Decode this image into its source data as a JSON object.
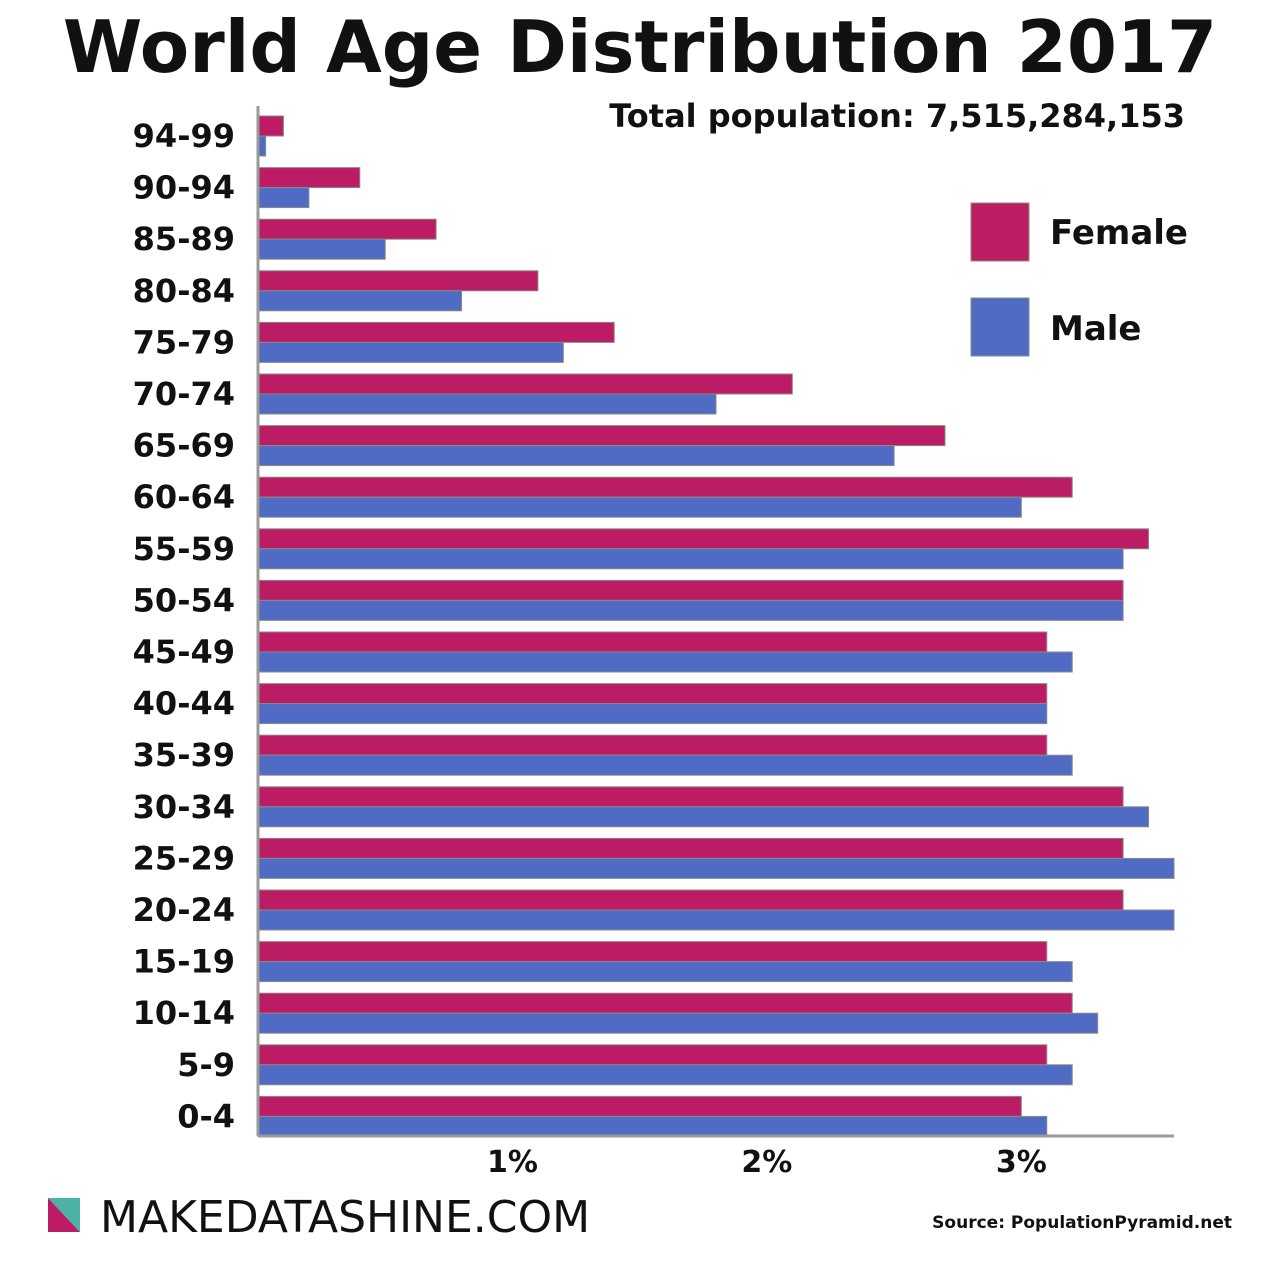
{
  "chart_data": {
    "type": "bar",
    "orientation": "horizontal",
    "title": "World Age Distribution 2017",
    "subtitle": "Total population: 7,515,284,153",
    "categories": [
      "94-99",
      "90-94",
      "85-89",
      "80-84",
      "75-79",
      "70-74",
      "65-69",
      "60-64",
      "55-59",
      "50-54",
      "45-49",
      "40-44",
      "35-39",
      "30-34",
      "25-29",
      "20-24",
      "15-19",
      "10-14",
      "5-9",
      "0-4"
    ],
    "series": [
      {
        "name": "Female",
        "color": "#bc1c63",
        "values": [
          0.1,
          0.4,
          0.7,
          1.1,
          1.4,
          2.1,
          2.7,
          3.2,
          3.5,
          3.4,
          3.1,
          3.1,
          3.1,
          3.4,
          3.4,
          3.4,
          3.1,
          3.2,
          3.1,
          3.0
        ]
      },
      {
        "name": "Male",
        "color": "#4f6bc3",
        "values": [
          0.03,
          0.2,
          0.5,
          0.8,
          1.2,
          1.8,
          2.5,
          3.0,
          3.4,
          3.4,
          3.2,
          3.1,
          3.2,
          3.5,
          3.6,
          3.6,
          3.2,
          3.3,
          3.2,
          3.1
        ]
      }
    ],
    "xticks": [
      1,
      2,
      3
    ],
    "xtick_labels": [
      "1%",
      "2%",
      "3%"
    ],
    "xlim": [
      0,
      3.6
    ],
    "xlabel": "",
    "ylabel": "",
    "legend_position": "top-right",
    "grid": false
  },
  "branding": {
    "text": "MAKEDATASHINE.COM",
    "logo_colors": [
      "#bc1c63",
      "#4bb3a6"
    ]
  },
  "source": "Source:  PopulationPyramid.net"
}
